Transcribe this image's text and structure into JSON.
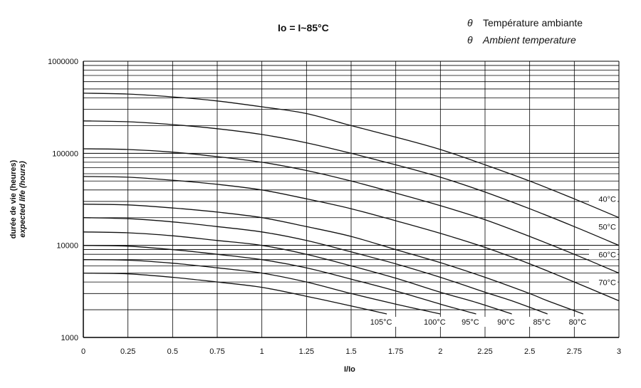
{
  "chart_data": {
    "type": "line",
    "title": "Io = I~85°C",
    "legend_lines": [
      {
        "symbol": "θ",
        "text": "Température ambiante"
      },
      {
        "symbol": "θ",
        "text": "Ambient temperature"
      }
    ],
    "xlabel": "I/Io",
    "ylabel": [
      "durée de vie (heures)",
      "expected life (hours)"
    ],
    "xlim": [
      0,
      3
    ],
    "ylim": [
      1000,
      1000000
    ],
    "y_scale": "log",
    "grid": true,
    "x_ticks": [
      "0",
      "0.25",
      "0.5",
      "0.75",
      "1",
      "1.25",
      "1.5",
      "1.75",
      "2",
      "2.25",
      "2.5",
      "2.75",
      "3"
    ],
    "y_ticks": [
      "1000",
      "10000",
      "100000",
      "1000000"
    ],
    "series": [
      {
        "name": "40°C",
        "x": [
          0,
          0.25,
          0.5,
          0.75,
          1,
          1.25,
          1.5,
          1.75,
          2,
          2.25,
          2.5,
          2.75,
          3
        ],
        "y": [
          450000,
          440000,
          410000,
          370000,
          320000,
          270000,
          200000,
          150000,
          110000,
          75000,
          50000,
          32000,
          20000
        ]
      },
      {
        "name": "50°C",
        "x": [
          0,
          0.25,
          0.5,
          0.75,
          1,
          1.25,
          1.5,
          1.75,
          2,
          2.25,
          2.5,
          2.75,
          3
        ],
        "y": [
          225000,
          220000,
          205000,
          185000,
          160000,
          130000,
          100000,
          75000,
          55000,
          38000,
          25000,
          16000,
          10000
        ]
      },
      {
        "name": "60°C",
        "x": [
          0,
          0.25,
          0.5,
          0.75,
          1,
          1.25,
          1.5,
          1.75,
          2,
          2.25,
          2.5,
          2.75,
          3
        ],
        "y": [
          112000,
          110000,
          103000,
          92000,
          80000,
          65000,
          50000,
          37000,
          27000,
          19000,
          12500,
          8000,
          5000
        ]
      },
      {
        "name": "70°C",
        "x": [
          0,
          0.25,
          0.5,
          0.75,
          1,
          1.25,
          1.5,
          1.75,
          2,
          2.25,
          2.5,
          2.75,
          3
        ],
        "y": [
          56000,
          55000,
          51000,
          46000,
          40000,
          32000,
          25000,
          18500,
          13500,
          9500,
          6300,
          4000,
          2500
        ]
      },
      {
        "name": "80°C",
        "x": [
          0,
          0.25,
          0.5,
          0.75,
          1,
          1.25,
          1.5,
          1.75,
          2,
          2.25,
          2.5,
          2.6,
          2.8
        ],
        "y": [
          28000,
          27500,
          25500,
          23000,
          20000,
          16000,
          12500,
          9000,
          6500,
          4500,
          3000,
          2500,
          1800
        ]
      },
      {
        "name": "85°C",
        "x": [
          0,
          0.25,
          0.5,
          0.75,
          1,
          1.25,
          1.5,
          1.75,
          2,
          2.25,
          2.4,
          2.6
        ],
        "y": [
          20000,
          19500,
          18000,
          16000,
          14000,
          11300,
          8500,
          6300,
          4500,
          3100,
          2500,
          1800
        ]
      },
      {
        "name": "90°C",
        "x": [
          0,
          0.25,
          0.5,
          0.75,
          1,
          1.25,
          1.5,
          1.75,
          2,
          2.2,
          2.4
        ],
        "y": [
          14000,
          13700,
          12700,
          11300,
          10000,
          8000,
          6000,
          4400,
          3100,
          2400,
          1800
        ]
      },
      {
        "name": "95°C",
        "x": [
          0,
          0.25,
          0.5,
          0.75,
          1,
          1.25,
          1.5,
          1.75,
          2,
          2.2
        ],
        "y": [
          10000,
          9800,
          9000,
          8000,
          7000,
          5700,
          4300,
          3200,
          2300,
          1800
        ]
      },
      {
        "name": "100°C",
        "x": [
          0,
          0.25,
          0.5,
          0.75,
          1,
          1.25,
          1.5,
          1.75,
          2
        ],
        "y": [
          7000,
          6900,
          6400,
          5700,
          5000,
          4000,
          3000,
          2300,
          1800
        ]
      },
      {
        "name": "105°C",
        "x": [
          0,
          0.25,
          0.5,
          0.75,
          1,
          1.25,
          1.5,
          1.7
        ],
        "y": [
          5000,
          4900,
          4500,
          4000,
          3500,
          2800,
          2200,
          1800
        ]
      }
    ]
  }
}
